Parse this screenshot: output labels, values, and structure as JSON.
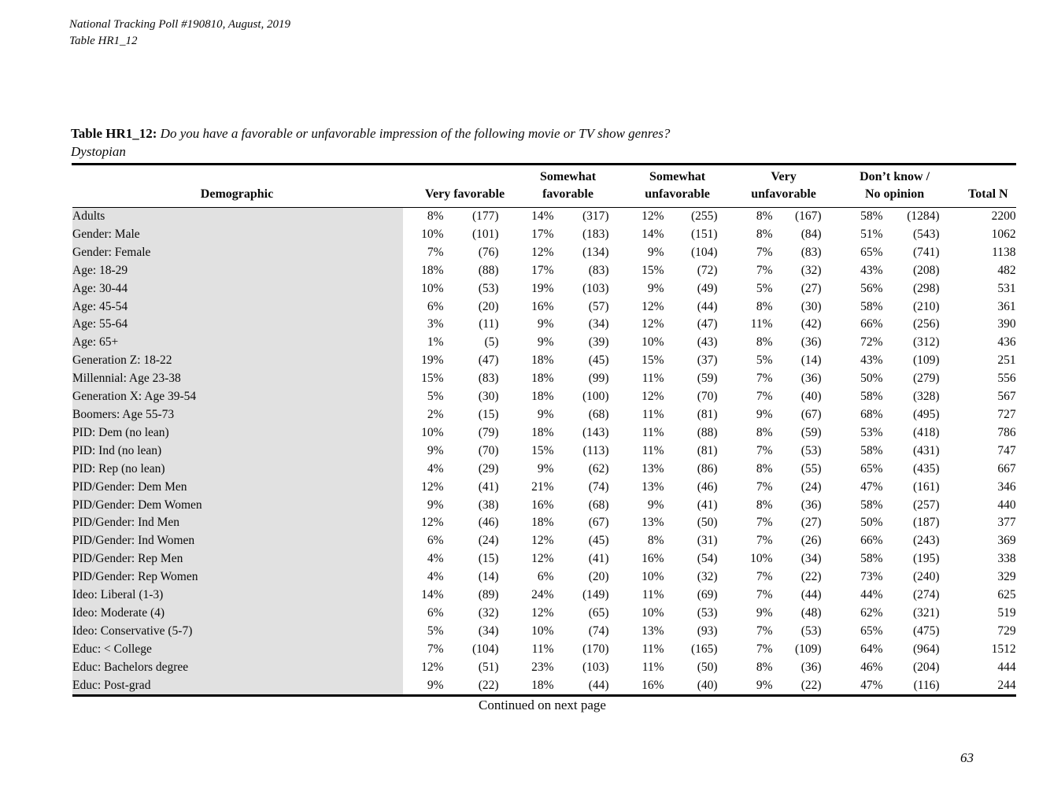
{
  "document": {
    "header": {
      "line1": "National Tracking Poll #190810, August, 2019",
      "line2": "Table HR1_12"
    },
    "title": {
      "label": "Table HR1_12:",
      "question": "Do you have a favorable or unfavorable impression of the following movie or TV show genres?",
      "subject": "Dystopian"
    },
    "footer": {
      "continued": "Continued on next page",
      "page_number": "63"
    }
  },
  "table": {
    "columns": [
      {
        "line1": "",
        "line2": "Demographic"
      },
      {
        "line1": "",
        "line2": "Very favorable"
      },
      {
        "line1": "Somewhat",
        "line2": "favorable"
      },
      {
        "line1": "Somewhat",
        "line2": "unfavorable"
      },
      {
        "line1": "Very",
        "line2": "unfavorable"
      },
      {
        "line1": "Don’t know /",
        "line2": "No opinion"
      },
      {
        "line1": "",
        "line2": "Total N"
      }
    ],
    "rows": [
      [
        "Adults",
        "8%",
        "(177)",
        "14%",
        "(317)",
        "12%",
        "(255)",
        "8%",
        "(167)",
        "58%",
        "(1284)",
        "2200"
      ],
      [
        "Gender: Male",
        "10%",
        "(101)",
        "17%",
        "(183)",
        "14%",
        "(151)",
        "8%",
        "(84)",
        "51%",
        "(543)",
        "1062"
      ],
      [
        "Gender: Female",
        "7%",
        "(76)",
        "12%",
        "(134)",
        "9%",
        "(104)",
        "7%",
        "(83)",
        "65%",
        "(741)",
        "1138"
      ],
      [
        "Age: 18-29",
        "18%",
        "(88)",
        "17%",
        "(83)",
        "15%",
        "(72)",
        "7%",
        "(32)",
        "43%",
        "(208)",
        "482"
      ],
      [
        "Age: 30-44",
        "10%",
        "(53)",
        "19%",
        "(103)",
        "9%",
        "(49)",
        "5%",
        "(27)",
        "56%",
        "(298)",
        "531"
      ],
      [
        "Age: 45-54",
        "6%",
        "(20)",
        "16%",
        "(57)",
        "12%",
        "(44)",
        "8%",
        "(30)",
        "58%",
        "(210)",
        "361"
      ],
      [
        "Age: 55-64",
        "3%",
        "(11)",
        "9%",
        "(34)",
        "12%",
        "(47)",
        "11%",
        "(42)",
        "66%",
        "(256)",
        "390"
      ],
      [
        "Age: 65+",
        "1%",
        "(5)",
        "9%",
        "(39)",
        "10%",
        "(43)",
        "8%",
        "(36)",
        "72%",
        "(312)",
        "436"
      ],
      [
        "Generation Z: 18-22",
        "19%",
        "(47)",
        "18%",
        "(45)",
        "15%",
        "(37)",
        "5%",
        "(14)",
        "43%",
        "(109)",
        "251"
      ],
      [
        "Millennial: Age 23-38",
        "15%",
        "(83)",
        "18%",
        "(99)",
        "11%",
        "(59)",
        "7%",
        "(36)",
        "50%",
        "(279)",
        "556"
      ],
      [
        "Generation X: Age 39-54",
        "5%",
        "(30)",
        "18%",
        "(100)",
        "12%",
        "(70)",
        "7%",
        "(40)",
        "58%",
        "(328)",
        "567"
      ],
      [
        "Boomers: Age 55-73",
        "2%",
        "(15)",
        "9%",
        "(68)",
        "11%",
        "(81)",
        "9%",
        "(67)",
        "68%",
        "(495)",
        "727"
      ],
      [
        "PID: Dem (no lean)",
        "10%",
        "(79)",
        "18%",
        "(143)",
        "11%",
        "(88)",
        "8%",
        "(59)",
        "53%",
        "(418)",
        "786"
      ],
      [
        "PID: Ind (no lean)",
        "9%",
        "(70)",
        "15%",
        "(113)",
        "11%",
        "(81)",
        "7%",
        "(53)",
        "58%",
        "(431)",
        "747"
      ],
      [
        "PID: Rep (no lean)",
        "4%",
        "(29)",
        "9%",
        "(62)",
        "13%",
        "(86)",
        "8%",
        "(55)",
        "65%",
        "(435)",
        "667"
      ],
      [
        "PID/Gender: Dem Men",
        "12%",
        "(41)",
        "21%",
        "(74)",
        "13%",
        "(46)",
        "7%",
        "(24)",
        "47%",
        "(161)",
        "346"
      ],
      [
        "PID/Gender: Dem Women",
        "9%",
        "(38)",
        "16%",
        "(68)",
        "9%",
        "(41)",
        "8%",
        "(36)",
        "58%",
        "(257)",
        "440"
      ],
      [
        "PID/Gender: Ind Men",
        "12%",
        "(46)",
        "18%",
        "(67)",
        "13%",
        "(50)",
        "7%",
        "(27)",
        "50%",
        "(187)",
        "377"
      ],
      [
        "PID/Gender: Ind Women",
        "6%",
        "(24)",
        "12%",
        "(45)",
        "8%",
        "(31)",
        "7%",
        "(26)",
        "66%",
        "(243)",
        "369"
      ],
      [
        "PID/Gender: Rep Men",
        "4%",
        "(15)",
        "12%",
        "(41)",
        "16%",
        "(54)",
        "10%",
        "(34)",
        "58%",
        "(195)",
        "338"
      ],
      [
        "PID/Gender: Rep Women",
        "4%",
        "(14)",
        "6%",
        "(20)",
        "10%",
        "(32)",
        "7%",
        "(22)",
        "73%",
        "(240)",
        "329"
      ],
      [
        "Ideo: Liberal (1-3)",
        "14%",
        "(89)",
        "24%",
        "(149)",
        "11%",
        "(69)",
        "7%",
        "(44)",
        "44%",
        "(274)",
        "625"
      ],
      [
        "Ideo: Moderate (4)",
        "6%",
        "(32)",
        "12%",
        "(65)",
        "10%",
        "(53)",
        "9%",
        "(48)",
        "62%",
        "(321)",
        "519"
      ],
      [
        "Ideo: Conservative (5-7)",
        "5%",
        "(34)",
        "10%",
        "(74)",
        "13%",
        "(93)",
        "7%",
        "(53)",
        "65%",
        "(475)",
        "729"
      ],
      [
        "Educ: < College",
        "7%",
        "(104)",
        "11%",
        "(170)",
        "11%",
        "(165)",
        "7%",
        "(109)",
        "64%",
        "(964)",
        "1512"
      ],
      [
        "Educ: Bachelors degree",
        "12%",
        "(51)",
        "23%",
        "(103)",
        "11%",
        "(50)",
        "8%",
        "(36)",
        "46%",
        "(204)",
        "444"
      ],
      [
        "Educ: Post-grad",
        "9%",
        "(22)",
        "18%",
        "(44)",
        "16%",
        "(40)",
        "9%",
        "(22)",
        "47%",
        "(116)",
        "244"
      ]
    ]
  }
}
